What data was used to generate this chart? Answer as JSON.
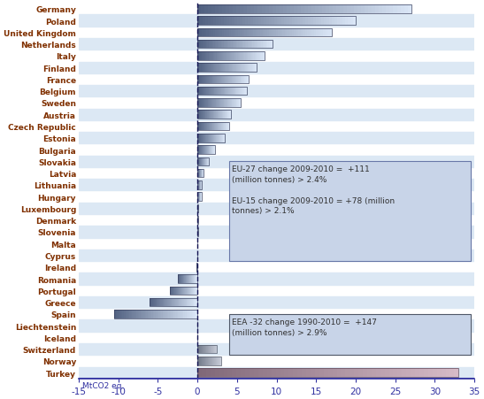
{
  "countries": [
    "Germany",
    "Poland",
    "United Kingdom",
    "Netherlands",
    "Italy",
    "Finland",
    "France",
    "Belgium",
    "Sweden",
    "Austria",
    "Czech Republic",
    "Estonia",
    "Bulgaria",
    "Slovakia",
    "Latvia",
    "Lithuania",
    "Hungary",
    "Luxembourg",
    "Denmark",
    "Slovenia",
    "Malta",
    "Cyprus",
    "Ireland",
    "Romania",
    "Portugal",
    "Greece",
    "Spain",
    "Liechtenstein",
    "Iceland",
    "Switzerland",
    "Norway",
    "Turkey"
  ],
  "values": [
    27.0,
    20.0,
    17.0,
    9.5,
    8.5,
    7.5,
    6.5,
    6.2,
    5.5,
    4.2,
    4.0,
    3.5,
    2.2,
    1.5,
    0.8,
    0.6,
    0.5,
    0.15,
    0.1,
    0.08,
    0.05,
    0.04,
    -0.1,
    -2.5,
    -3.5,
    -6.0,
    -10.5,
    -0.02,
    -0.05,
    2.5,
    3.0,
    33.0
  ],
  "row_bg_color": "#dce8f4",
  "bar_gradient_dark": "#506080",
  "bar_gradient_light": "#dce8f8",
  "bar_edge_color": "#384060",
  "turkey_gradient_dark": "#806878",
  "turkey_gradient_light": "#d8bcc8",
  "norway_swiss_dark": "#707888",
  "norway_swiss_light": "#c8ccd8",
  "background_color": "#ffffff",
  "dashed_line_color": "#101050",
  "label_color": "#3030a0",
  "text_color": "#803000",
  "xlabel": "MtCO2 eq.",
  "xlim": [
    -15,
    35
  ],
  "annotation_box1_bg": "#c8d4e8",
  "annotation_box1_edge": "#6878a8",
  "annotation_box2_bg": "#c8d4e8",
  "annotation_box2_edge": "#505868",
  "ann1_text": "EU-27 change 2009-2010 =  +111\n(million tonnes) > 2.4%\n\nEU-15 change 2009-2010 = +78 (million\ntonnes) > 2.1%",
  "ann2_text": "EEA -32 change 1990-2010 =  +147\n(million tonnes) > 2.9%"
}
